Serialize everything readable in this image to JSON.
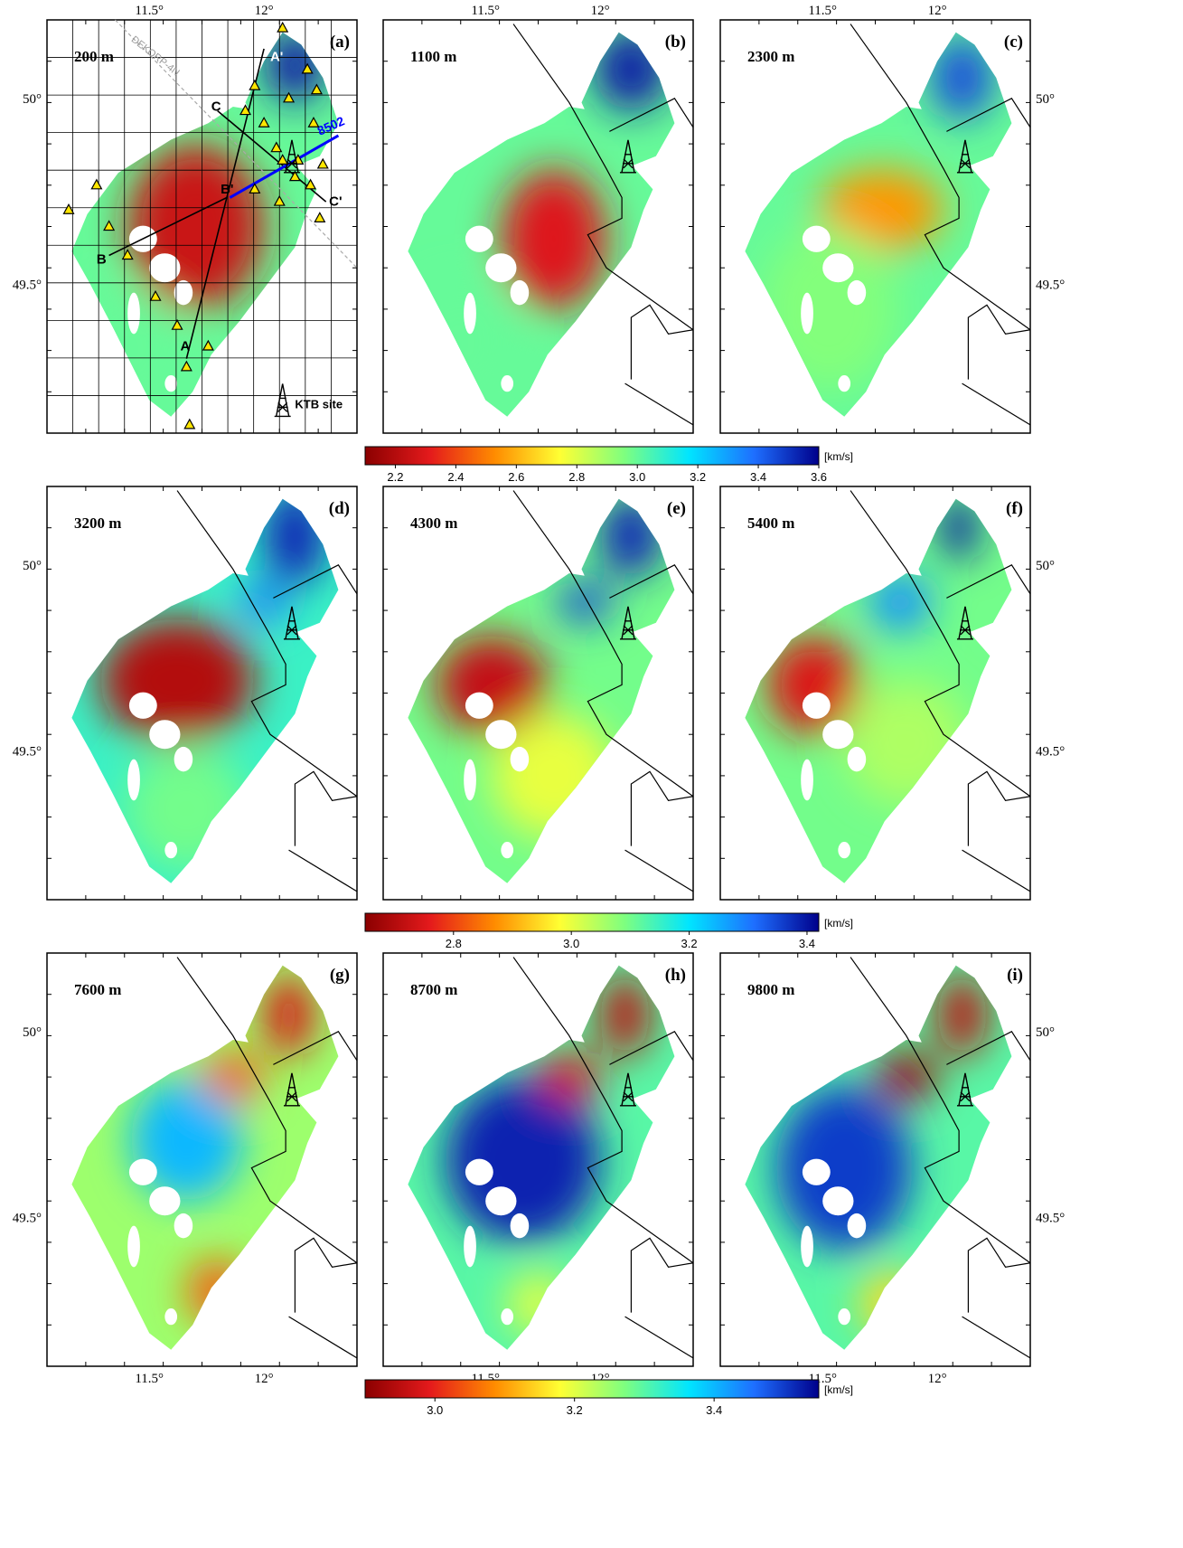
{
  "figure": {
    "type": "tomography-depth-slices",
    "panels": [
      {
        "label": "(a)",
        "depth": "200 m",
        "row": 0,
        "col": 0,
        "colorbar": 0
      },
      {
        "label": "(b)",
        "depth": "1100 m",
        "row": 0,
        "col": 1,
        "colorbar": 0
      },
      {
        "label": "(c)",
        "depth": "2300 m",
        "row": 0,
        "col": 2,
        "colorbar": 0
      },
      {
        "label": "(d)",
        "depth": "3200 m",
        "row": 1,
        "col": 0,
        "colorbar": 1
      },
      {
        "label": "(e)",
        "depth": "4300 m",
        "row": 1,
        "col": 1,
        "colorbar": 1
      },
      {
        "label": "(f)",
        "depth": "5400 m",
        "row": 1,
        "col": 2,
        "colorbar": 1
      },
      {
        "label": "(g)",
        "depth": "7600 m",
        "row": 2,
        "col": 0,
        "colorbar": 2
      },
      {
        "label": "(h)",
        "depth": "8700 m",
        "row": 2,
        "col": 1,
        "colorbar": 2
      },
      {
        "label": "(i)",
        "depth": "9800 m",
        "row": 2,
        "col": 2,
        "colorbar": 2
      }
    ],
    "lon_ticks": [
      "11.5°",
      "12°"
    ],
    "lat_ticks": [
      "50°",
      "49.5°"
    ],
    "colorbars": [
      {
        "unit": "[km/s]",
        "ticks": [
          "2.2",
          "2.4",
          "2.6",
          "2.8",
          "3.0",
          "3.2",
          "3.4",
          "3.6"
        ],
        "range": [
          2.1,
          3.6
        ]
      },
      {
        "unit": "[km/s]",
        "ticks": [
          "2.8",
          "3.0",
          "3.2",
          "3.4"
        ],
        "range": [
          2.65,
          3.42
        ]
      },
      {
        "unit": "[km/s]",
        "ticks": [
          "3.0",
          "3.2",
          "3.4"
        ],
        "range": [
          2.9,
          3.55
        ]
      }
    ],
    "colormap": [
      "#8b0000",
      "#e41a1c",
      "#ff8c00",
      "#ffff33",
      "#7fff7f",
      "#00e5ff",
      "#1e6fff",
      "#00008b"
    ],
    "panel_a_annotations": {
      "profile_labels": [
        "A",
        "A'",
        "B",
        "B'",
        "C",
        "C'"
      ],
      "line_label": "8502",
      "line_color": "#0000ff",
      "zone_label": "DEKORP-4N",
      "legend_label": "KTB site",
      "station_marker": "yellow-triangle"
    }
  }
}
